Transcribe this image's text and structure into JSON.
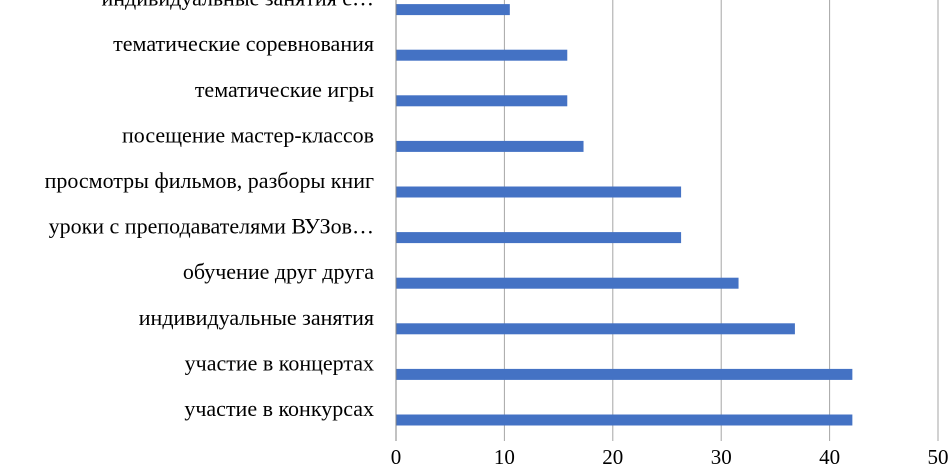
{
  "chart_data": {
    "type": "bar",
    "orientation": "horizontal",
    "categories": [
      "участие в конкурсах",
      "участие в концертах",
      "индивидуальные занятия",
      "обучение друг друга",
      "уроки с преподавателями ВУЗов…",
      "просмотры фильмов, разборы книг",
      "посещение мастер-классов",
      "тематические игры",
      "тематические соревнования",
      "индивидуальные занятия с…"
    ],
    "values": [
      42.1,
      42.1,
      36.8,
      31.6,
      26.3,
      26.3,
      17.3,
      15.8,
      15.8,
      10.5
    ],
    "xlim": [
      0,
      50
    ],
    "xticks": [
      0,
      10,
      20,
      30,
      40,
      50
    ],
    "grid": true,
    "legend": "none",
    "title": "",
    "xlabel": "",
    "ylabel": "",
    "bar_color": "#4472c4"
  }
}
